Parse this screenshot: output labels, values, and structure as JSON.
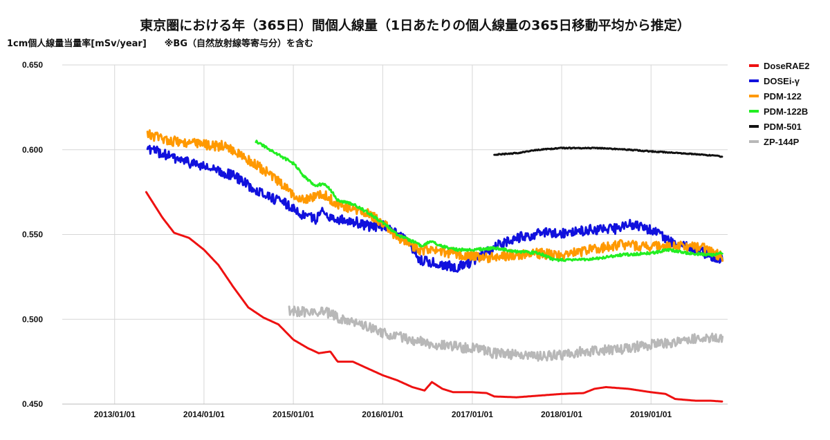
{
  "chart_data": {
    "type": "line",
    "title": "東京圏における年（365日）間個人線量（1日あたりの個人線量の365日移動平均から推定）",
    "subtitle": "1cm個人線量当量率[mSv/year]　　※BG（自然放射線等寄与分）を含む",
    "ylim": [
      0.45,
      0.65
    ],
    "yticks": [
      "0.450",
      "0.500",
      "0.550",
      "0.600",
      "0.650"
    ],
    "xlim": [
      "2012-06-01",
      "2019-11-10"
    ],
    "xticks": [
      "2013/01/01",
      "2014/01/01",
      "2015/01/01",
      "2016/01/01",
      "2017/01/01",
      "2018/01/01",
      "2019/01/01"
    ],
    "grid": true,
    "legend_position": "right",
    "series": [
      {
        "name": "DoseRAE2",
        "color": "#ee1111",
        "noise": 0,
        "points": [
          [
            "2013-05-10",
            0.575
          ],
          [
            "2013-07-15",
            0.56
          ],
          [
            "2013-09-01",
            0.551
          ],
          [
            "2013-11-01",
            0.548
          ],
          [
            "2014-01-01",
            0.541
          ],
          [
            "2014-03-01",
            0.532
          ],
          [
            "2014-05-01",
            0.519
          ],
          [
            "2014-07-01",
            0.507
          ],
          [
            "2014-09-01",
            0.501
          ],
          [
            "2014-11-01",
            0.497
          ],
          [
            "2015-01-01",
            0.488
          ],
          [
            "2015-03-01",
            0.483
          ],
          [
            "2015-04-15",
            0.48
          ],
          [
            "2015-06-01",
            0.481
          ],
          [
            "2015-07-01",
            0.475
          ],
          [
            "2015-09-01",
            0.475
          ],
          [
            "2015-11-01",
            0.471
          ],
          [
            "2016-01-01",
            0.467
          ],
          [
            "2016-03-01",
            0.464
          ],
          [
            "2016-05-01",
            0.46
          ],
          [
            "2016-06-20",
            0.458
          ],
          [
            "2016-07-20",
            0.463
          ],
          [
            "2016-09-01",
            0.459
          ],
          [
            "2016-10-15",
            0.457
          ],
          [
            "2017-01-01",
            0.457
          ],
          [
            "2017-03-01",
            0.4565
          ],
          [
            "2017-04-01",
            0.4545
          ],
          [
            "2017-07-01",
            0.454
          ],
          [
            "2018-01-01",
            0.456
          ],
          [
            "2018-04-01",
            0.4565
          ],
          [
            "2018-05-15",
            0.459
          ],
          [
            "2018-07-01",
            0.46
          ],
          [
            "2018-10-01",
            0.459
          ],
          [
            "2019-01-01",
            0.457
          ],
          [
            "2019-03-01",
            0.456
          ],
          [
            "2019-04-10",
            0.453
          ],
          [
            "2019-07-01",
            0.452
          ],
          [
            "2019-09-01",
            0.452
          ],
          [
            "2019-10-20",
            0.4515
          ]
        ]
      },
      {
        "name": "DOSEi-γ",
        "color": "#1111dd",
        "noise": 0.003,
        "points": [
          [
            "2013-05-15",
            0.601
          ],
          [
            "2013-09-01",
            0.595
          ],
          [
            "2014-01-01",
            0.59
          ],
          [
            "2014-03-01",
            0.587
          ],
          [
            "2014-05-01",
            0.585
          ],
          [
            "2014-07-01",
            0.579
          ],
          [
            "2014-10-01",
            0.572
          ],
          [
            "2014-12-15",
            0.567
          ],
          [
            "2015-02-01",
            0.562
          ],
          [
            "2015-04-01",
            0.559
          ],
          [
            "2015-05-01",
            0.564
          ],
          [
            "2015-06-15",
            0.559
          ],
          [
            "2015-09-01",
            0.558
          ],
          [
            "2015-11-01",
            0.555
          ],
          [
            "2016-01-01",
            0.555
          ],
          [
            "2016-04-01",
            0.547
          ],
          [
            "2016-06-01",
            0.535
          ],
          [
            "2016-09-01",
            0.532
          ],
          [
            "2016-11-01",
            0.531
          ],
          [
            "2017-01-01",
            0.534
          ],
          [
            "2017-03-01",
            0.54
          ],
          [
            "2017-05-01",
            0.545
          ],
          [
            "2017-08-01",
            0.549
          ],
          [
            "2017-11-01",
            0.551
          ],
          [
            "2018-02-01",
            0.551
          ],
          [
            "2018-05-01",
            0.553
          ],
          [
            "2018-08-01",
            0.553
          ],
          [
            "2018-10-01",
            0.556
          ],
          [
            "2019-01-01",
            0.553
          ],
          [
            "2019-04-01",
            0.545
          ],
          [
            "2019-07-01",
            0.541
          ],
          [
            "2019-10-20",
            0.535
          ]
        ]
      },
      {
        "name": "PDM-122",
        "color": "#ff9900",
        "noise": 0.003,
        "points": [
          [
            "2013-05-15",
            0.609
          ],
          [
            "2013-09-01",
            0.605
          ],
          [
            "2014-01-01",
            0.603
          ],
          [
            "2014-04-01",
            0.602
          ],
          [
            "2014-07-01",
            0.594
          ],
          [
            "2014-10-01",
            0.585
          ],
          [
            "2015-01-01",
            0.573
          ],
          [
            "2015-03-01",
            0.571
          ],
          [
            "2015-05-01",
            0.574
          ],
          [
            "2015-07-01",
            0.568
          ],
          [
            "2015-09-01",
            0.565
          ],
          [
            "2015-11-01",
            0.562
          ],
          [
            "2016-01-01",
            0.557
          ],
          [
            "2016-03-01",
            0.548
          ],
          [
            "2016-06-01",
            0.541
          ],
          [
            "2016-09-01",
            0.54
          ],
          [
            "2016-12-01",
            0.538
          ],
          [
            "2017-03-01",
            0.536
          ],
          [
            "2017-06-01",
            0.538
          ],
          [
            "2017-09-01",
            0.539
          ],
          [
            "2018-01-01",
            0.538
          ],
          [
            "2018-05-01",
            0.541
          ],
          [
            "2018-09-01",
            0.544
          ],
          [
            "2019-01-01",
            0.543
          ],
          [
            "2019-05-01",
            0.543
          ],
          [
            "2019-08-01",
            0.542
          ],
          [
            "2019-10-20",
            0.537
          ]
        ]
      },
      {
        "name": "PDM-122B",
        "color": "#22ee22",
        "noise": 0.0008,
        "points": [
          [
            "2014-08-01",
            0.605
          ],
          [
            "2014-09-15",
            0.601
          ],
          [
            "2014-11-01",
            0.597
          ],
          [
            "2015-01-01",
            0.592
          ],
          [
            "2015-02-15",
            0.584
          ],
          [
            "2015-04-01",
            0.579
          ],
          [
            "2015-05-10",
            0.58
          ],
          [
            "2015-06-10",
            0.575
          ],
          [
            "2015-07-01",
            0.57
          ],
          [
            "2015-09-01",
            0.568
          ],
          [
            "2015-11-01",
            0.563
          ],
          [
            "2016-01-01",
            0.557
          ],
          [
            "2016-03-01",
            0.55
          ],
          [
            "2016-05-01",
            0.546
          ],
          [
            "2016-06-10",
            0.543
          ],
          [
            "2016-07-15",
            0.546
          ],
          [
            "2016-09-01",
            0.543
          ],
          [
            "2016-11-01",
            0.541
          ],
          [
            "2017-01-01",
            0.541
          ],
          [
            "2017-04-01",
            0.542
          ],
          [
            "2017-07-01",
            0.54
          ],
          [
            "2017-10-01",
            0.539
          ],
          [
            "2017-12-01",
            0.535
          ],
          [
            "2018-03-01",
            0.535
          ],
          [
            "2018-06-01",
            0.536
          ],
          [
            "2018-09-01",
            0.538
          ],
          [
            "2019-01-01",
            0.539
          ],
          [
            "2019-03-15",
            0.541
          ],
          [
            "2019-06-01",
            0.539
          ],
          [
            "2019-09-01",
            0.538
          ],
          [
            "2019-10-20",
            0.539
          ]
        ]
      },
      {
        "name": "PDM-501",
        "color": "#111111",
        "noise": 0.0003,
        "points": [
          [
            "2017-04-01",
            0.597
          ],
          [
            "2017-07-01",
            0.598
          ],
          [
            "2017-10-01",
            0.6
          ],
          [
            "2018-01-01",
            0.601
          ],
          [
            "2018-06-01",
            0.601
          ],
          [
            "2018-10-01",
            0.6
          ],
          [
            "2019-01-01",
            0.599
          ],
          [
            "2019-05-01",
            0.598
          ],
          [
            "2019-08-01",
            0.597
          ],
          [
            "2019-10-20",
            0.596
          ]
        ]
      },
      {
        "name": "ZP-144P",
        "color": "#b8b8b8",
        "noise": 0.003,
        "points": [
          [
            "2014-12-15",
            0.505
          ],
          [
            "2015-03-01",
            0.504
          ],
          [
            "2015-05-01",
            0.505
          ],
          [
            "2015-07-01",
            0.501
          ],
          [
            "2015-09-01",
            0.499
          ],
          [
            "2015-11-01",
            0.496
          ],
          [
            "2016-01-01",
            0.492
          ],
          [
            "2016-04-01",
            0.489
          ],
          [
            "2016-07-01",
            0.486
          ],
          [
            "2016-10-01",
            0.484
          ],
          [
            "2017-01-01",
            0.483
          ],
          [
            "2017-04-01",
            0.48
          ],
          [
            "2017-07-01",
            0.479
          ],
          [
            "2017-10-01",
            0.478
          ],
          [
            "2018-01-01",
            0.479
          ],
          [
            "2018-04-01",
            0.481
          ],
          [
            "2018-08-01",
            0.482
          ],
          [
            "2019-01-01",
            0.485
          ],
          [
            "2019-05-01",
            0.487
          ],
          [
            "2019-08-01",
            0.489
          ],
          [
            "2019-10-20",
            0.489
          ]
        ]
      }
    ]
  }
}
